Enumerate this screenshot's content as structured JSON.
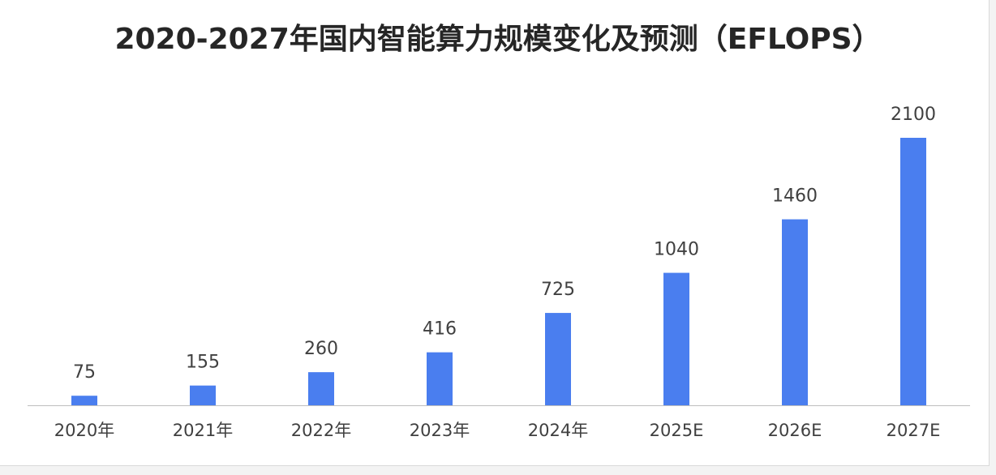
{
  "chart_data": {
    "type": "bar",
    "title": "2020-2027年国内智能算力规模变化及预测（EFLOPS）",
    "categories": [
      "2020年",
      "2021年",
      "2022年",
      "2023年",
      "2024年",
      "2025E",
      "2026E",
      "2027E"
    ],
    "values": [
      75,
      155,
      260,
      416,
      725,
      1040,
      1460,
      2100
    ],
    "xlabel": "",
    "ylabel": "",
    "ylim": [
      0,
      2100
    ],
    "grid": false,
    "legend": "none",
    "colors": {
      "bar": "#4a7eef",
      "axis": "#bfbfbf",
      "text": "#404040",
      "title": "#262626"
    }
  }
}
